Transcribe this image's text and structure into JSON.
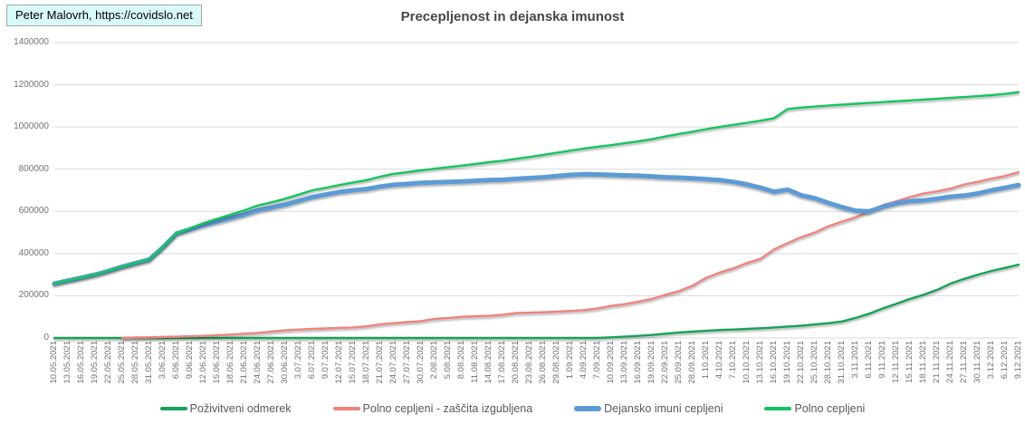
{
  "watermark": {
    "text": "Peter Malovrh, https://covidslo.net",
    "background": "#d8fbf9",
    "border_color": "#a6a6a6"
  },
  "colors": {
    "background": "#ffffff",
    "title_text": "#464646",
    "axis_text": "#737373",
    "gridline": "#d9d9d9",
    "legend_text": "#595959"
  },
  "chart_data": {
    "type": "line",
    "title": "Precepljenost in dejanska imunost",
    "xlabel": "",
    "ylabel": "",
    "ylim": [
      0,
      1400000
    ],
    "y_ticks": [
      0,
      200000,
      400000,
      600000,
      800000,
      1000000,
      1200000,
      1400000
    ],
    "grid": "horizontal",
    "legend_position": "bottom",
    "x_labels": [
      "10.05.2021",
      "13.05.2021",
      "16.05.2021",
      "19.05.2021",
      "22.05.2021",
      "25.05.2021",
      "28.05.2021",
      "31.05.2021",
      "3.06.2021",
      "6.06.2021",
      "9.06.2021",
      "12.06.2021",
      "15.06.2021",
      "18.06.2021",
      "21.06.2021",
      "24.06.2021",
      "27.06.2021",
      "30.06.2021",
      "3.07.2021",
      "6.07.2021",
      "9.07.2021",
      "12.07.2021",
      "15.07.2021",
      "18.07.2021",
      "21.07.2021",
      "24.07.2021",
      "27.07.2021",
      "30.07.2021",
      "2.08.2021",
      "5.08.2021",
      "8.08.2021",
      "11.08.2021",
      "14.08.2021",
      "17.08.2021",
      "20.08.2021",
      "23.08.2021",
      "26.08.2021",
      "29.08.2021",
      "1.09.2021",
      "4.09.2021",
      "7.09.2021",
      "10.09.2021",
      "13.09.2021",
      "16.09.2021",
      "19.09.2021",
      "22.09.2021",
      "25.09.2021",
      "28.09.2021",
      "1.10.2021",
      "4.10.2021",
      "7.10.2021",
      "10.10.2021",
      "13.10.2021",
      "16.10.2021",
      "19.10.2021",
      "22.10.2021",
      "25.10.2021",
      "28.10.2021",
      "31.10.2021",
      "3.11.2021",
      "6.11.2021",
      "9.11.2021",
      "12.11.2021",
      "15.11.2021",
      "18.11.2021",
      "21.11.2021",
      "24.11.2021",
      "27.11.2021",
      "30.11.2021",
      "3.12.2021",
      "6.12.2021",
      "9.12.2021"
    ],
    "series": [
      {
        "name": "Poživitveni odmerek",
        "color": "#17a257",
        "line_width": 2.4,
        "values": [
          0,
          0,
          0,
          0,
          0,
          0,
          0,
          0,
          0,
          0,
          0,
          0,
          0,
          0,
          0,
          0,
          0,
          0,
          0,
          0,
          0,
          0,
          0,
          0,
          0,
          0,
          0,
          0,
          0,
          0,
          0,
          0,
          0,
          0,
          0,
          0,
          0,
          0,
          0,
          0,
          0,
          3000,
          6000,
          10000,
          14000,
          20000,
          26000,
          30000,
          34000,
          38000,
          40000,
          43000,
          46000,
          50000,
          54000,
          58000,
          64000,
          70000,
          78000,
          95000,
          115000,
          140000,
          162000,
          185000,
          205000,
          228000,
          258000,
          280000,
          300000,
          318000,
          332000,
          348000
        ]
      },
      {
        "name": "Polno cepljeni - zaščita izgubljena",
        "color": "#f0837e",
        "line_width": 2.4,
        "values": [
          null,
          null,
          null,
          null,
          null,
          0,
          2000,
          3000,
          5000,
          6000,
          8000,
          10000,
          13000,
          16000,
          20000,
          24000,
          30000,
          36000,
          40000,
          43000,
          45000,
          48000,
          50000,
          55000,
          65000,
          70000,
          75000,
          80000,
          90000,
          95000,
          100000,
          103000,
          105000,
          110000,
          118000,
          120000,
          122000,
          125000,
          128000,
          132000,
          140000,
          152000,
          160000,
          172000,
          185000,
          205000,
          222000,
          248000,
          285000,
          310000,
          330000,
          355000,
          375000,
          420000,
          450000,
          478000,
          500000,
          530000,
          552000,
          572000,
          600000,
          630000,
          648000,
          668000,
          685000,
          695000,
          708000,
          728000,
          740000,
          755000,
          768000,
          786000
        ]
      },
      {
        "name": "Dejansko imuni cepljeni",
        "color": "#5b9bd5",
        "line_width": 5,
        "values": [
          258000,
          272000,
          286000,
          300000,
          318000,
          338000,
          355000,
          372000,
          430000,
          495000,
          515000,
          535000,
          552000,
          568000,
          585000,
          605000,
          618000,
          632000,
          650000,
          668000,
          680000,
          692000,
          700000,
          706000,
          718000,
          726000,
          730000,
          735000,
          738000,
          740000,
          742000,
          745000,
          748000,
          750000,
          754000,
          758000,
          762000,
          768000,
          773000,
          776000,
          775000,
          773000,
          771000,
          769000,
          766000,
          762000,
          760000,
          757000,
          753000,
          748000,
          740000,
          728000,
          712000,
          693000,
          703000,
          676000,
          662000,
          640000,
          620000,
          603000,
          600000,
          622000,
          638000,
          648000,
          652000,
          660000,
          670000,
          675000,
          685000,
          700000,
          712000,
          725000
        ]
      },
      {
        "name": "Polno cepljeni",
        "color": "#12c55d",
        "line_width": 2.4,
        "values": [
          258000,
          272000,
          286000,
          300000,
          318000,
          338000,
          355000,
          372000,
          430000,
          495000,
          520000,
          545000,
          565000,
          585000,
          605000,
          628000,
          643000,
          660000,
          680000,
          700000,
          712000,
          725000,
          737000,
          748000,
          765000,
          778000,
          786000,
          795000,
          802000,
          810000,
          817000,
          825000,
          833000,
          840000,
          849000,
          858000,
          868000,
          878000,
          888000,
          898000,
          906000,
          914000,
          923000,
          932000,
          942000,
          955000,
          967000,
          978000,
          990000,
          1000000,
          1010000,
          1020000,
          1030000,
          1042000,
          1085000,
          1092000,
          1097000,
          1102000,
          1106000,
          1110000,
          1114000,
          1118000,
          1122000,
          1126000,
          1130000,
          1134000,
          1138000,
          1142000,
          1146000,
          1151000,
          1157000,
          1165000
        ]
      }
    ]
  }
}
